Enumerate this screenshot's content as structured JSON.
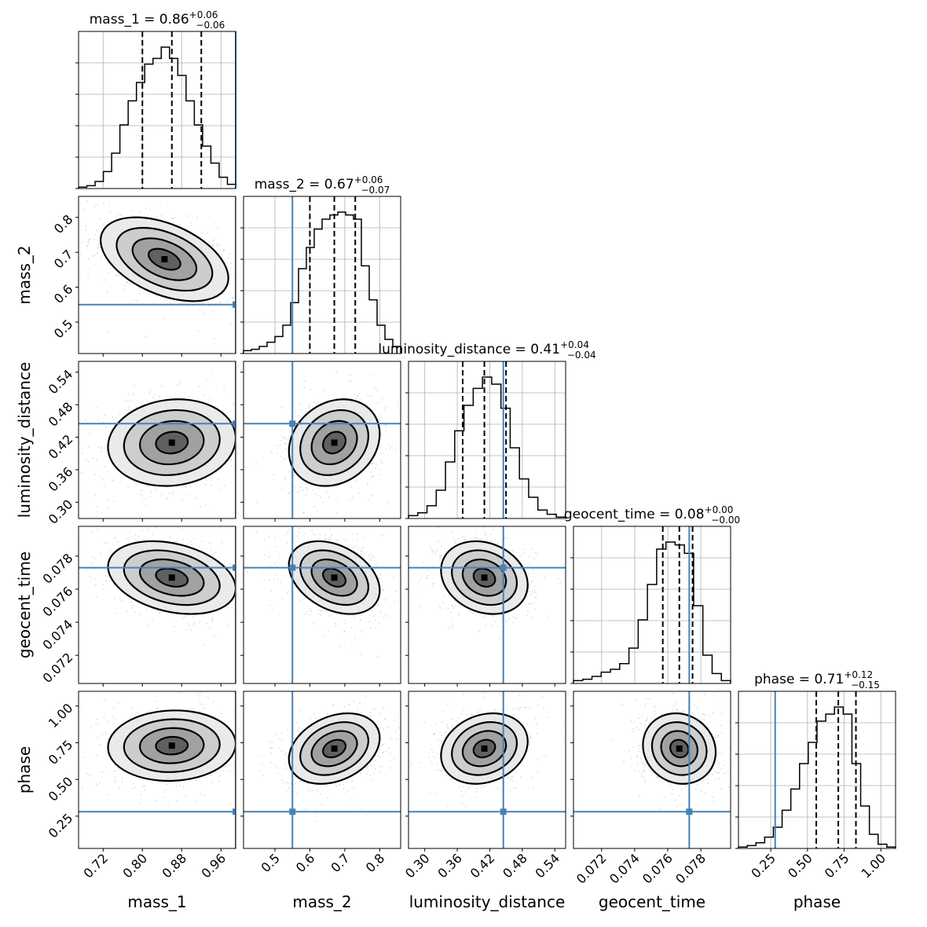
{
  "chart_data": {
    "type": "corner",
    "parameters": [
      {
        "name": "mass_1",
        "median": 0.86,
        "plus": "0.06",
        "minus": "0.06",
        "truth": 0.99,
        "range": [
          0.67,
          0.99
        ],
        "ticks": [
          0.72,
          0.8,
          0.88,
          0.96
        ],
        "tick_labels": [
          "0.72",
          "0.80",
          "0.88",
          "0.96"
        ],
        "quantiles": [
          0.8,
          0.86,
          0.92
        ]
      },
      {
        "name": "mass_2",
        "median": 0.67,
        "plus": "0.06",
        "minus": "0.07",
        "truth": 0.55,
        "range": [
          0.41,
          0.86
        ],
        "ticks": [
          0.5,
          0.6,
          0.7,
          0.8
        ],
        "tick_labels": [
          "0.5",
          "0.6",
          "0.7",
          "0.8"
        ],
        "quantiles": [
          0.6,
          0.67,
          0.73
        ]
      },
      {
        "name": "luminosity_distance",
        "median": 0.41,
        "plus": "0.04",
        "minus": "0.04",
        "truth": 0.445,
        "range": [
          0.27,
          0.56
        ],
        "ticks": [
          0.3,
          0.36,
          0.42,
          0.48,
          0.54
        ],
        "tick_labels": [
          "0.30",
          "0.36",
          "0.42",
          "0.48",
          "0.54"
        ],
        "quantiles": [
          0.37,
          0.41,
          0.45
        ]
      },
      {
        "name": "geocent_time",
        "median": 0.08,
        "plus": "0.00",
        "minus": "0.00",
        "truth": 0.0773,
        "range": [
          0.0703,
          0.0798
        ],
        "ticks": [
          0.072,
          0.074,
          0.076,
          0.078
        ],
        "tick_labels": [
          "0.072",
          "0.074",
          "0.076",
          "0.078"
        ],
        "quantiles": [
          0.0757,
          0.0767,
          0.0775
        ]
      },
      {
        "name": "phase",
        "median": 0.71,
        "plus": "0.12",
        "minus": "0.15",
        "truth": 0.28,
        "range": [
          0.03,
          1.1
        ],
        "ticks": [
          0.25,
          0.5,
          0.75,
          1.0
        ],
        "tick_labels": [
          "0.25",
          "0.50",
          "0.75",
          "1.00"
        ],
        "quantiles": [
          0.56,
          0.71,
          0.83
        ]
      }
    ],
    "pairs": [
      {
        "x": "mass_1",
        "y": "mass_2",
        "center": [
          0.845,
          0.68
        ],
        "sigma": [
          0.065,
          0.06
        ],
        "rho": -0.45
      },
      {
        "x": "mass_1",
        "y": "luminosity_distance",
        "center": [
          0.86,
          0.41
        ],
        "sigma": [
          0.065,
          0.04
        ],
        "rho": 0.1
      },
      {
        "x": "mass_2",
        "y": "luminosity_distance",
        "center": [
          0.67,
          0.41
        ],
        "sigma": [
          0.065,
          0.04
        ],
        "rho": 0.2
      },
      {
        "x": "mass_1",
        "y": "geocent_time",
        "center": [
          0.86,
          0.0767
        ],
        "sigma": [
          0.065,
          0.0011
        ],
        "rho": -0.3
      },
      {
        "x": "mass_2",
        "y": "geocent_time",
        "center": [
          0.67,
          0.0767
        ],
        "sigma": [
          0.065,
          0.0011
        ],
        "rho": -0.35
      },
      {
        "x": "luminosity_distance",
        "y": "geocent_time",
        "center": [
          0.41,
          0.0767
        ],
        "sigma": [
          0.04,
          0.0011
        ],
        "rho": -0.2
      },
      {
        "x": "mass_1",
        "y": "phase",
        "center": [
          0.86,
          0.73
        ],
        "sigma": [
          0.065,
          0.12
        ],
        "rho": 0.05
      },
      {
        "x": "mass_2",
        "y": "phase",
        "center": [
          0.67,
          0.71
        ],
        "sigma": [
          0.065,
          0.12
        ],
        "rho": 0.3
      },
      {
        "x": "luminosity_distance",
        "y": "phase",
        "center": [
          0.41,
          0.71
        ],
        "sigma": [
          0.04,
          0.12
        ],
        "rho": 0.2
      },
      {
        "x": "geocent_time",
        "y": "phase",
        "center": [
          0.0767,
          0.71
        ],
        "sigma": [
          0.0011,
          0.12
        ],
        "rho": -0.1
      }
    ],
    "histograms": {
      "mass_1": [
        0.01,
        0.02,
        0.05,
        0.12,
        0.25,
        0.45,
        0.62,
        0.75,
        0.88,
        0.92,
        1.0,
        0.92,
        0.8,
        0.62,
        0.45,
        0.3,
        0.18,
        0.08,
        0.03
      ],
      "mass_2": [
        0.02,
        0.03,
        0.05,
        0.08,
        0.12,
        0.2,
        0.36,
        0.6,
        0.75,
        0.88,
        0.95,
        0.98,
        1.0,
        0.98,
        0.95,
        0.62,
        0.38,
        0.2,
        0.1,
        0.05
      ],
      "luminosity_distance": [
        0.02,
        0.04,
        0.09,
        0.2,
        0.4,
        0.62,
        0.8,
        0.92,
        1.0,
        0.95,
        0.78,
        0.5,
        0.28,
        0.15,
        0.06,
        0.03,
        0.01
      ],
      "geocent_time": [
        0.02,
        0.03,
        0.05,
        0.08,
        0.1,
        0.14,
        0.25,
        0.45,
        0.7,
        0.95,
        1.0,
        0.98,
        0.92,
        0.55,
        0.2,
        0.07,
        0.02
      ],
      "phase": [
        0.01,
        0.02,
        0.04,
        0.08,
        0.15,
        0.27,
        0.42,
        0.6,
        0.75,
        0.9,
        0.95,
        1.0,
        0.95,
        0.6,
        0.3,
        0.1,
        0.03,
        0.01
      ]
    },
    "grid": true,
    "line_color": "#000000",
    "truth_color": "#4682b4"
  }
}
